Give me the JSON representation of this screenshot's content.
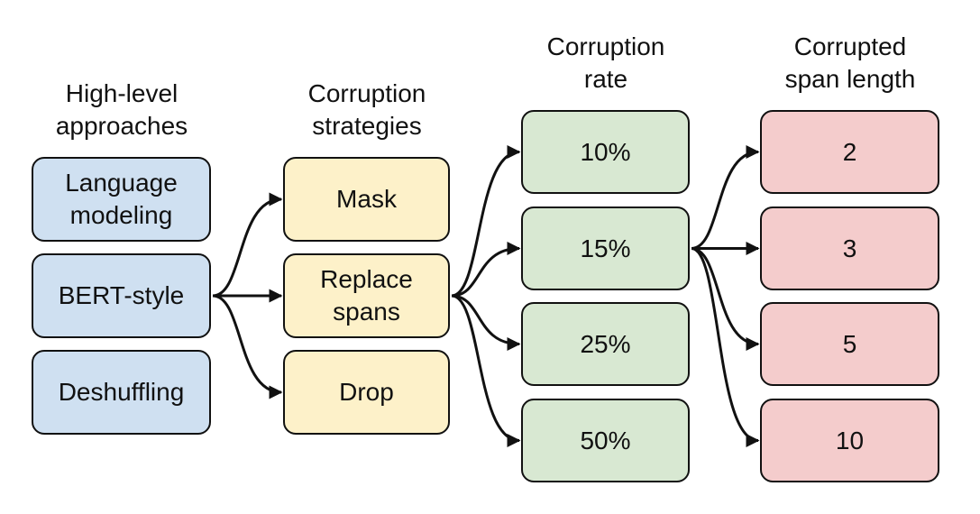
{
  "colors": {
    "approaches": "#cfe0f1",
    "strategies": "#fdf1c9",
    "rates": "#d8e8d2",
    "lengths": "#f4cccc",
    "border": "#111111"
  },
  "headers": {
    "approaches": "High-level\napproaches",
    "strategies": "Corruption\nstrategies",
    "rates": "Corruption\nrate",
    "lengths": "Corrupted\nspan length"
  },
  "approaches": [
    {
      "label": "Language\nmodeling"
    },
    {
      "label": "BERT-style"
    },
    {
      "label": "Deshuffling"
    }
  ],
  "strategies": [
    {
      "label": "Mask"
    },
    {
      "label": "Replace\nspans"
    },
    {
      "label": "Drop"
    }
  ],
  "rates": [
    {
      "label": "10%"
    },
    {
      "label": "15%"
    },
    {
      "label": "25%"
    },
    {
      "label": "50%"
    }
  ],
  "lengths": [
    {
      "label": "2"
    },
    {
      "label": "3"
    },
    {
      "label": "5"
    },
    {
      "label": "10"
    }
  ],
  "edges": [
    {
      "from": "approach-bert-style",
      "to": "strategy-mask"
    },
    {
      "from": "approach-bert-style",
      "to": "strategy-replace-spans"
    },
    {
      "from": "approach-bert-style",
      "to": "strategy-drop"
    },
    {
      "from": "strategy-replace-spans",
      "to": "rate-10"
    },
    {
      "from": "strategy-replace-spans",
      "to": "rate-15"
    },
    {
      "from": "strategy-replace-spans",
      "to": "rate-25"
    },
    {
      "from": "strategy-replace-spans",
      "to": "rate-50"
    },
    {
      "from": "rate-15",
      "to": "length-2"
    },
    {
      "from": "rate-15",
      "to": "length-3"
    },
    {
      "from": "rate-15",
      "to": "length-5"
    },
    {
      "from": "rate-15",
      "to": "length-10"
    }
  ]
}
